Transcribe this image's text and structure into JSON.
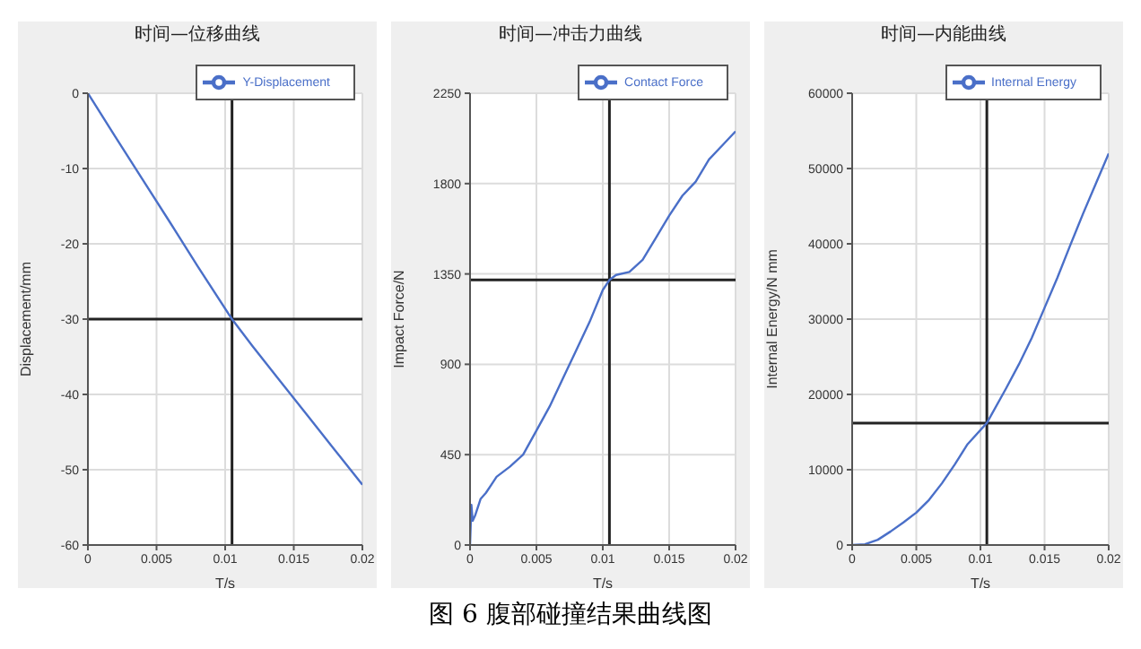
{
  "chart_data": [
    {
      "type": "line",
      "title": "时间—位移曲线",
      "xlabel": "T/s",
      "ylabel": "Displacement/mm",
      "xlim": [
        0,
        0.02
      ],
      "xticks": [
        0,
        0.005,
        0.01,
        0.015,
        0.02
      ],
      "ylim": [
        -60,
        0
      ],
      "yticks": [
        -60,
        -50,
        -40,
        -30,
        -20,
        -10,
        0
      ],
      "grid": true,
      "legend": "top right",
      "marker": "none",
      "line_style": "solid",
      "series": [
        {
          "name": "Y-Displacement",
          "color": "#4a6fc8",
          "x": [
            0,
            0.002,
            0.004,
            0.006,
            0.008,
            0.0105,
            0.012,
            0.014,
            0.016,
            0.018,
            0.02
          ],
          "values": [
            0,
            -5.8,
            -11.5,
            -17.2,
            -23,
            -30,
            -33.6,
            -38.2,
            -42.8,
            -47.4,
            -52
          ]
        }
      ],
      "ref_lines": [
        {
          "axis": "x",
          "value": 0.0105,
          "label": null,
          "color": "#222222"
        },
        {
          "axis": "y",
          "value": -30,
          "label": null,
          "color": "#222222"
        }
      ],
      "annotations": [
        "图 6  腹部碰撞结果曲线图"
      ]
    },
    {
      "type": "line",
      "title": "时间—冲击力曲线",
      "xlabel": "T/s",
      "ylabel": "Impact Force/N",
      "xlim": [
        0,
        0.02
      ],
      "xticks": [
        0,
        0.005,
        0.01,
        0.015,
        0.02
      ],
      "ylim": [
        0,
        2250
      ],
      "yticks": [
        0,
        450,
        900,
        1350,
        1800,
        2250
      ],
      "grid": true,
      "legend": "top right",
      "marker": "none",
      "line_style": "solid",
      "series": [
        {
          "name": "Contact Force",
          "color": "#4a6fc8",
          "x": [
            0,
            0.0001,
            0.0002,
            0.0004,
            0.0008,
            0.0012,
            0.0016,
            0.002,
            0.003,
            0.004,
            0.005,
            0.006,
            0.007,
            0.008,
            0.009,
            0.01,
            0.0105,
            0.011,
            0.012,
            0.013,
            0.014,
            0.015,
            0.016,
            0.017,
            0.018,
            0.019,
            0.02
          ],
          "values": [
            0,
            200,
            120,
            150,
            230,
            260,
            300,
            340,
            390,
            450,
            570,
            690,
            830,
            970,
            1110,
            1270,
            1320,
            1345,
            1360,
            1420,
            1530,
            1640,
            1740,
            1810,
            1920,
            1990,
            2060
          ]
        }
      ],
      "ref_lines": [
        {
          "axis": "x",
          "value": 0.0105,
          "label": null,
          "color": "#222222"
        },
        {
          "axis": "y",
          "value": 1320,
          "label": null,
          "color": "#222222"
        }
      ]
    },
    {
      "type": "line",
      "title": "时间—内能曲线",
      "xlabel": "T/s",
      "ylabel": "Internal Energy/N mm",
      "xlim": [
        0,
        0.02
      ],
      "xticks": [
        0,
        0.005,
        0.01,
        0.015,
        0.02
      ],
      "ylim": [
        0,
        60000
      ],
      "yticks": [
        0,
        10000,
        20000,
        30000,
        40000,
        50000,
        60000
      ],
      "grid": true,
      "legend": "top right",
      "marker": "none",
      "line_style": "solid",
      "series": [
        {
          "name": "Internal Energy",
          "color": "#4a6fc8",
          "x": [
            0,
            0.001,
            0.002,
            0.003,
            0.004,
            0.005,
            0.006,
            0.007,
            0.008,
            0.009,
            0.0105,
            0.012,
            0.013,
            0.014,
            0.015,
            0.016,
            0.017,
            0.018,
            0.019,
            0.02
          ],
          "values": [
            0,
            100,
            700,
            1800,
            3000,
            4300,
            6000,
            8200,
            10700,
            13400,
            16200,
            20800,
            24000,
            27500,
            31500,
            35500,
            39800,
            44000,
            48000,
            52000
          ]
        }
      ],
      "ref_lines": [
        {
          "axis": "x",
          "value": 0.0105,
          "label": null,
          "color": "#222222"
        },
        {
          "axis": "y",
          "value": 16200,
          "label": null,
          "color": "#222222"
        }
      ]
    }
  ]
}
